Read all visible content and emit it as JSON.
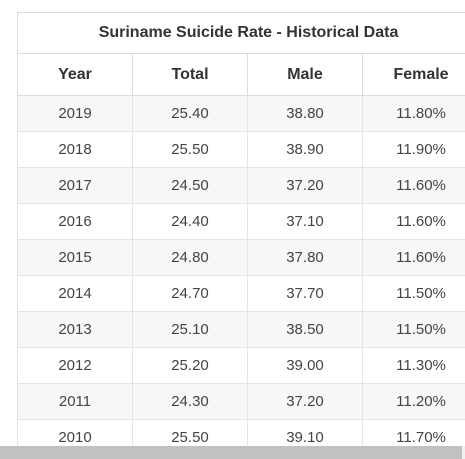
{
  "table": {
    "title": "Suriname Suicide Rate - Historical Data",
    "headers": [
      "Year",
      "Total",
      "Male",
      "Female"
    ],
    "rows": [
      [
        "2019",
        "25.40",
        "38.80",
        "11.80%"
      ],
      [
        "2018",
        "25.50",
        "38.90",
        "11.90%"
      ],
      [
        "2017",
        "24.50",
        "37.20",
        "11.60%"
      ],
      [
        "2016",
        "24.40",
        "37.10",
        "11.60%"
      ],
      [
        "2015",
        "24.80",
        "37.80",
        "11.60%"
      ],
      [
        "2014",
        "24.70",
        "37.70",
        "11.50%"
      ],
      [
        "2013",
        "25.10",
        "38.50",
        "11.50%"
      ],
      [
        "2012",
        "25.20",
        "39.00",
        "11.30%"
      ],
      [
        "2011",
        "24.30",
        "37.20",
        "11.20%"
      ],
      [
        "2010",
        "25.50",
        "39.10",
        "11.70%"
      ]
    ]
  },
  "colors": {
    "odd_row": "#f7f7f7",
    "even_row": "#ffffff",
    "border": "#dcdcdc",
    "text": "#444444"
  }
}
